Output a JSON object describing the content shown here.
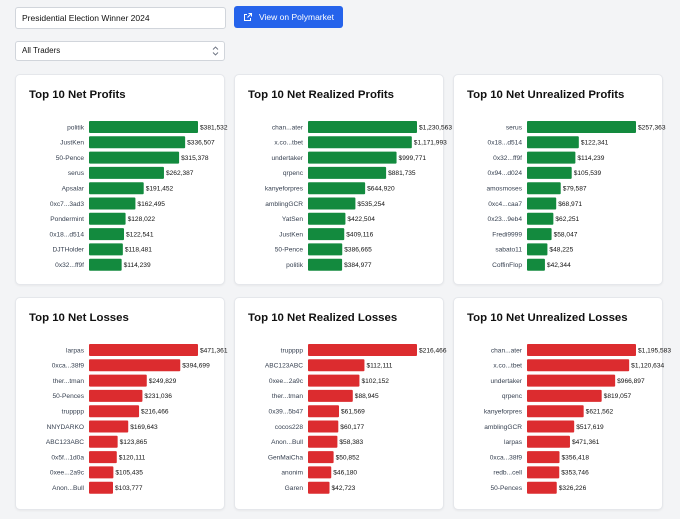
{
  "header": {
    "search_value": "Presidential Election Winner 2024",
    "polymarket_label": "View on Polymarket",
    "trader_filter": "All Traders"
  },
  "colors": {
    "profit": "#138a3e",
    "loss": "#dc2c2f",
    "button": "#2563eb"
  },
  "icons": {
    "polymarket_button": "external-link-icon",
    "select": "chevron-up-down-icon"
  },
  "chart_data": [
    {
      "id": "net-profits",
      "type": "bar",
      "orientation": "horizontal",
      "color": "profit",
      "title": "Top 10 Net Profits",
      "categories": [
        "politik",
        "JustKen",
        "50-Pence",
        "serus",
        "Apsalar",
        "0xc7...3ad3",
        "Pondermint",
        "0x18...d514",
        "DJTHolder",
        "0x32...ff9f"
      ],
      "values": [
        381532,
        336507,
        315378,
        262387,
        191452,
        162495,
        128022,
        122541,
        118481,
        114239
      ],
      "labels": [
        "$381,532",
        "$336,507",
        "$315,378",
        "$262,387",
        "$191,452",
        "$162,495",
        "$128,022",
        "$122,541",
        "$118,481",
        "$114,239"
      ]
    },
    {
      "id": "net-realized-profits",
      "type": "bar",
      "orientation": "horizontal",
      "color": "profit",
      "title": "Top 10 Net Realized Profits",
      "categories": [
        "chan...ater",
        "x.co...tbet",
        "undertaker",
        "qrpenc",
        "kanyeforpres",
        "amblingGCR",
        "YatSen",
        "JustKen",
        "50-Pence",
        "politik"
      ],
      "values": [
        1230563,
        1171993,
        999771,
        881735,
        644920,
        535254,
        422504,
        409116,
        386665,
        384977
      ],
      "labels": [
        "$1,230,563",
        "$1,171,993",
        "$999,771",
        "$881,735",
        "$644,920",
        "$535,254",
        "$422,504",
        "$409,116",
        "$386,665",
        "$384,977"
      ]
    },
    {
      "id": "net-unrealized-profits",
      "type": "bar",
      "orientation": "horizontal",
      "color": "profit",
      "title": "Top 10 Net Unrealized Profits",
      "categories": [
        "serus",
        "0x18...d514",
        "0x32...ff9f",
        "0x94...d024",
        "amosmoses",
        "0xc4...caa7",
        "0x23...9eb4",
        "Fredi9999",
        "sabato11",
        "CoffinFlop"
      ],
      "values": [
        257363,
        122341,
        114239,
        105539,
        79587,
        68971,
        62251,
        58047,
        48225,
        42344
      ],
      "labels": [
        "$257,363",
        "$122,341",
        "$114,239",
        "$105,539",
        "$79,587",
        "$68,971",
        "$62,251",
        "$58,047",
        "$48,225",
        "$42,344"
      ]
    },
    {
      "id": "net-losses",
      "type": "bar",
      "orientation": "horizontal",
      "color": "loss",
      "title": "Top 10 Net Losses",
      "categories": [
        "larpas",
        "0xca...38f9",
        "ther...tman",
        "50-Pences",
        "trupppp",
        "NNYDARKO",
        "ABC123ABC",
        "0x5f...1d0a",
        "0xee...2a9c",
        "Anon...Bull"
      ],
      "values": [
        471361,
        394699,
        249829,
        231036,
        216466,
        169643,
        123865,
        120111,
        105435,
        103777
      ],
      "labels": [
        "$471,361",
        "$394,699",
        "$249,829",
        "$231,036",
        "$216,466",
        "$169,643",
        "$123,865",
        "$120,111",
        "$105,435",
        "$103,777"
      ]
    },
    {
      "id": "net-realized-losses",
      "type": "bar",
      "orientation": "horizontal",
      "color": "loss",
      "title": "Top 10 Net Realized Losses",
      "categories": [
        "trupppp",
        "ABC123ABC",
        "0xee...2a9c",
        "ther...tman",
        "0x39...5b47",
        "cocos228",
        "Anon...Bull",
        "GenMaiCha",
        "anonim",
        "Garen"
      ],
      "values": [
        216466,
        112111,
        102152,
        88945,
        61569,
        60177,
        58383,
        50852,
        46180,
        42723
      ],
      "labels": [
        "$216,466",
        "$112,111",
        "$102,152",
        "$88,945",
        "$61,569",
        "$60,177",
        "$58,383",
        "$50,852",
        "$46,180",
        "$42,723"
      ]
    },
    {
      "id": "net-unrealized-losses",
      "type": "bar",
      "orientation": "horizontal",
      "color": "loss",
      "title": "Top 10 Net Unrealized Losses",
      "categories": [
        "chan...ater",
        "x.co...tbet",
        "undertaker",
        "qrpenc",
        "kanyeforpres",
        "amblingGCR",
        "larpas",
        "0xca...38f9",
        "redb...cell",
        "50-Pences"
      ],
      "values": [
        1195583,
        1120634,
        966897,
        819057,
        621562,
        517619,
        471361,
        356418,
        353746,
        326226
      ],
      "labels": [
        "$1,195,583",
        "$1,120,634",
        "$966,897",
        "$819,057",
        "$621,562",
        "$517,619",
        "$471,361",
        "$356,418",
        "$353,746",
        "$326,226"
      ]
    }
  ]
}
